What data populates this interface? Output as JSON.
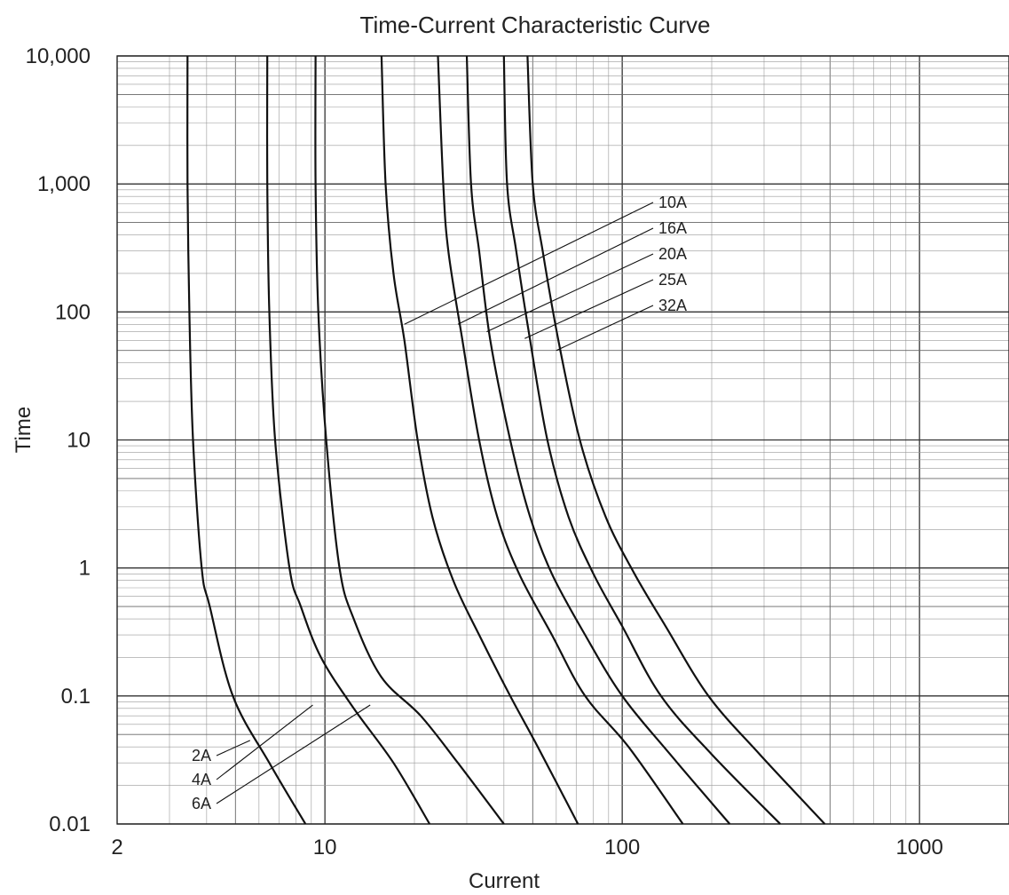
{
  "chart_data": {
    "type": "line",
    "title": "Time-Current Characteristic Curve",
    "xlabel": "Current",
    "ylabel": "Time",
    "x_scale": "log",
    "y_scale": "log",
    "xlim": [
      2,
      2000
    ],
    "ylim": [
      0.01,
      10000
    ],
    "grid": true,
    "x_ticks": [
      {
        "value": 2,
        "label": "2"
      },
      {
        "value": 10,
        "label": "10"
      },
      {
        "value": 100,
        "label": "100"
      },
      {
        "value": 1000,
        "label": "1000"
      }
    ],
    "y_ticks": [
      {
        "value": 0.01,
        "label": "0.01"
      },
      {
        "value": 0.1,
        "label": "0.1"
      },
      {
        "value": 1,
        "label": "1"
      },
      {
        "value": 10,
        "label": "10"
      },
      {
        "value": 100,
        "label": "100"
      },
      {
        "value": 1000,
        "label": "1,000"
      },
      {
        "value": 10000,
        "label": "10,000"
      }
    ],
    "series": [
      {
        "name": "2A",
        "points": [
          [
            3.45,
            10000
          ],
          [
            3.45,
            1000
          ],
          [
            3.5,
            100
          ],
          [
            3.6,
            10
          ],
          [
            3.85,
            1
          ],
          [
            4.1,
            0.5
          ],
          [
            4.9,
            0.1
          ],
          [
            6.5,
            0.03
          ],
          [
            8.6,
            0.01
          ]
        ]
      },
      {
        "name": "4A",
        "points": [
          [
            6.4,
            10000
          ],
          [
            6.4,
            1000
          ],
          [
            6.5,
            100
          ],
          [
            6.8,
            10
          ],
          [
            7.6,
            1
          ],
          [
            8.3,
            0.5
          ],
          [
            9.7,
            0.2
          ],
          [
            12.5,
            0.08
          ],
          [
            17,
            0.03
          ],
          [
            22.5,
            0.01
          ]
        ]
      },
      {
        "name": "6A",
        "points": [
          [
            9.3,
            10000
          ],
          [
            9.3,
            1000
          ],
          [
            9.5,
            100
          ],
          [
            10.1,
            10
          ],
          [
            11.2,
            1
          ],
          [
            12.5,
            0.4
          ],
          [
            15.5,
            0.14
          ],
          [
            21,
            0.07
          ],
          [
            28,
            0.03
          ],
          [
            40,
            0.01
          ]
        ]
      },
      {
        "name": "10A",
        "points": [
          [
            15.5,
            10000
          ],
          [
            16,
            1000
          ],
          [
            17,
            200
          ],
          [
            18.5,
            60
          ],
          [
            20.5,
            10
          ],
          [
            23,
            2.5
          ],
          [
            27,
            0.8
          ],
          [
            33,
            0.3
          ],
          [
            42,
            0.1
          ],
          [
            52,
            0.04
          ],
          [
            71,
            0.01
          ]
        ]
      },
      {
        "name": "16A",
        "points": [
          [
            24,
            10000
          ],
          [
            25,
            1000
          ],
          [
            26,
            300
          ],
          [
            29,
            60
          ],
          [
            33,
            10
          ],
          [
            38,
            2.5
          ],
          [
            45,
            0.9
          ],
          [
            58,
            0.3
          ],
          [
            75,
            0.1
          ],
          [
            105,
            0.04
          ],
          [
            160,
            0.01
          ]
        ]
      },
      {
        "name": "20A",
        "points": [
          [
            30,
            10000
          ],
          [
            31,
            1000
          ],
          [
            33,
            300
          ],
          [
            36,
            60
          ],
          [
            42,
            10
          ],
          [
            49,
            2.5
          ],
          [
            58,
            0.9
          ],
          [
            75,
            0.3
          ],
          [
            100,
            0.1
          ],
          [
            145,
            0.035
          ],
          [
            230,
            0.01
          ]
        ]
      },
      {
        "name": "25A",
        "points": [
          [
            40,
            10000
          ],
          [
            41,
            1000
          ],
          [
            44,
            300
          ],
          [
            49,
            60
          ],
          [
            56,
            10
          ],
          [
            66,
            2.5
          ],
          [
            80,
            0.9
          ],
          [
            100,
            0.35
          ],
          [
            135,
            0.1
          ],
          [
            200,
            0.035
          ],
          [
            340,
            0.01
          ]
        ]
      },
      {
        "name": "32A",
        "points": [
          [
            48,
            10000
          ],
          [
            50,
            1000
          ],
          [
            54,
            300
          ],
          [
            61,
            60
          ],
          [
            72,
            10
          ],
          [
            88,
            2.5
          ],
          [
            110,
            0.9
          ],
          [
            140,
            0.35
          ],
          [
            195,
            0.1
          ],
          [
            290,
            0.035
          ],
          [
            480,
            0.01
          ]
        ]
      }
    ],
    "legend_labels_top": [
      "10A",
      "16A",
      "20A",
      "25A",
      "32A"
    ],
    "legend_labels_bottom": [
      "2A",
      "4A",
      "6A"
    ]
  }
}
